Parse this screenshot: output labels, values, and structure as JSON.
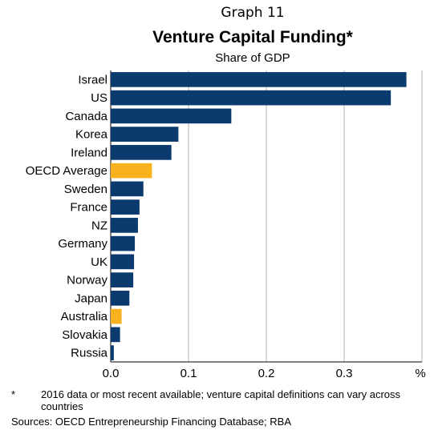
{
  "header": {
    "graph_label": "Graph 11",
    "title": "Venture Capital Funding*",
    "subtitle": "Share of GDP"
  },
  "colors": {
    "bar": "#0b3a6e",
    "highlight": "#f7b21e",
    "grid": "#b3b3b3"
  },
  "chart_data": {
    "type": "bar",
    "orientation": "horizontal",
    "title": "Venture Capital Funding*",
    "subtitle": "Share of GDP",
    "xlabel": "",
    "ylabel": "",
    "unit": "%",
    "xlim": [
      0,
      0.4
    ],
    "x_ticks": [
      "0.0",
      "0.1",
      "0.2",
      "0.3"
    ],
    "grid": true,
    "legend": "none",
    "categories": [
      "Israel",
      "US",
      "Canada",
      "Korea",
      "Ireland",
      "OECD Average",
      "Sweden",
      "France",
      "NZ",
      "Germany",
      "UK",
      "Norway",
      "Japan",
      "Australia",
      "Slovakia",
      "Russia"
    ],
    "values": [
      0.38,
      0.36,
      0.155,
      0.087,
      0.078,
      0.053,
      0.042,
      0.037,
      0.035,
      0.031,
      0.03,
      0.029,
      0.024,
      0.014,
      0.012,
      0.004
    ],
    "highlighted": [
      "OECD Average",
      "Australia"
    ]
  },
  "footnote": {
    "marker": "*",
    "text": "2016 data or most recent available; venture capital definitions can vary across countries"
  },
  "sources": "Sources:   OECD Entrepreneurship Financing Database; RBA"
}
